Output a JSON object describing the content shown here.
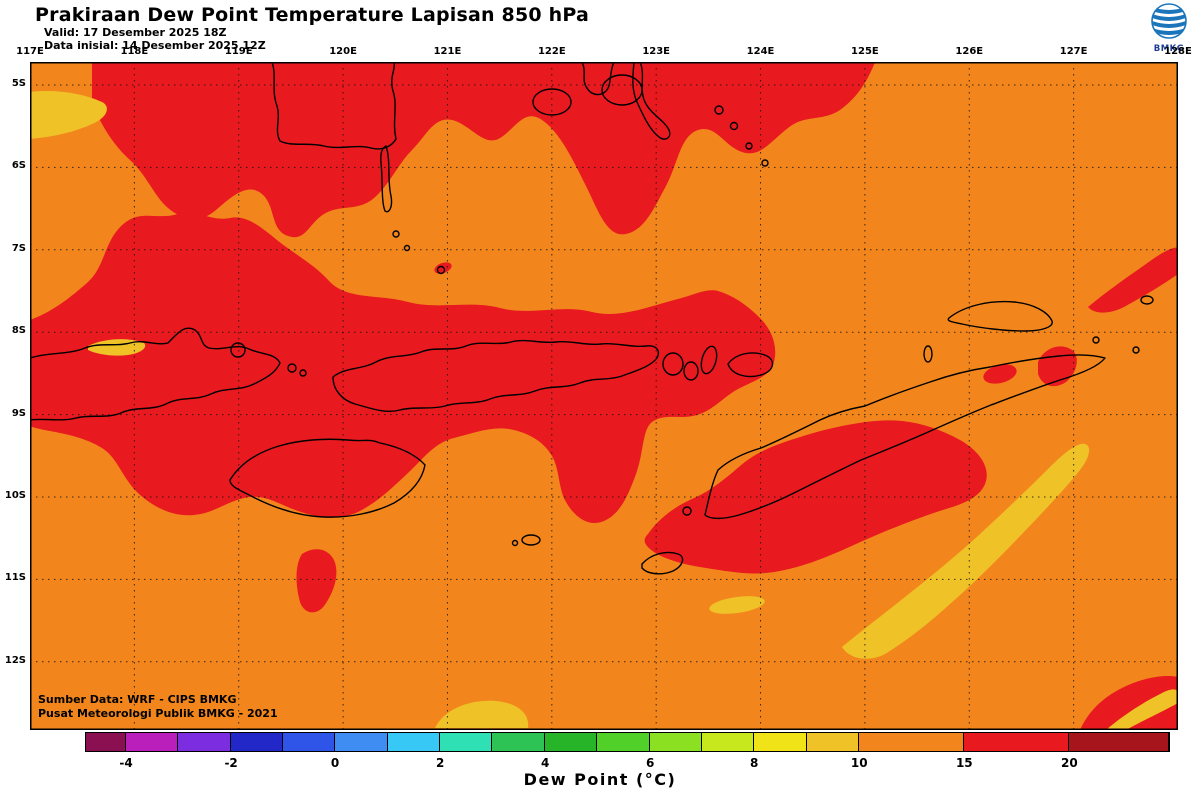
{
  "palette": {
    "orange": "#F2861D",
    "red": "#E8191F",
    "yellow": "#EFC227"
  },
  "header": {
    "title": "Prakiraan Dew Point Temperature Lapisan 850 hPa",
    "valid_line": "Valid: 17 Desember 2025 18Z",
    "init_line": "Data inisial: 14 Desember 2025 12Z",
    "logo_text": "BMKG"
  },
  "map": {
    "lon_ticks": [
      "117E",
      "118E",
      "119E",
      "120E",
      "121E",
      "122E",
      "123E",
      "124E",
      "125E",
      "126E",
      "127E",
      "128E"
    ],
    "lat_ticks": [
      "5S",
      "6S",
      "7S",
      "8S",
      "9S",
      "10S",
      "11S",
      "12S"
    ],
    "source_line1": "Sumber Data: WRF - CIPS BMKG",
    "source_line2": "Pusat Meteorologi Publik BMKG - 2021"
  },
  "colorbar": {
    "title": "Dew Point (°C)",
    "ticks": [
      {
        "label": "-4",
        "pos": 0.037
      },
      {
        "label": "-2",
        "pos": 0.134
      },
      {
        "label": "0",
        "pos": 0.23
      },
      {
        "label": "2",
        "pos": 0.327
      },
      {
        "label": "4",
        "pos": 0.424
      },
      {
        "label": "6",
        "pos": 0.521
      },
      {
        "label": "8",
        "pos": 0.617
      },
      {
        "label": "10",
        "pos": 0.714
      },
      {
        "label": "15",
        "pos": 0.811
      },
      {
        "label": "20",
        "pos": 0.908
      }
    ],
    "segments": [
      {
        "color": "#8B1052",
        "to": 0.037
      },
      {
        "color": "#BB1FBB",
        "to": 0.085
      },
      {
        "color": "#7D2DE0",
        "to": 0.134
      },
      {
        "color": "#2228C8",
        "to": 0.182
      },
      {
        "color": "#2F55E8",
        "to": 0.23
      },
      {
        "color": "#3F8CF2",
        "to": 0.279
      },
      {
        "color": "#38C8F5",
        "to": 0.327
      },
      {
        "color": "#2EE0B4",
        "to": 0.375
      },
      {
        "color": "#2EC455",
        "to": 0.424
      },
      {
        "color": "#28B428",
        "to": 0.472
      },
      {
        "color": "#50D028",
        "to": 0.521
      },
      {
        "color": "#8CE022",
        "to": 0.569
      },
      {
        "color": "#C8E81E",
        "to": 0.617
      },
      {
        "color": "#F0E418",
        "to": 0.666
      },
      {
        "color": "#EFC227",
        "to": 0.714
      },
      {
        "color": "#F2861D",
        "to": 0.811
      },
      {
        "color": "#E8191F",
        "to": 0.908
      },
      {
        "color": "#A5151B",
        "to": 1.0
      }
    ]
  },
  "chart_data": {
    "type": "heatmap",
    "title": "Prakiraan Dew Point Temperature Lapisan 850 hPa",
    "variable": "Dew Point (°C)",
    "level": "850 hPa",
    "valid_time": "17 Desember 2025 18Z",
    "initial_time": "14 Desember 2025 12Z",
    "x_axis_ticks": [
      "117E",
      "118E",
      "119E",
      "120E",
      "121E",
      "122E",
      "123E",
      "124E",
      "125E",
      "126E",
      "127E",
      "128E"
    ],
    "y_axis_ticks": [
      "5S",
      "6S",
      "7S",
      "8S",
      "9S",
      "10S",
      "11S",
      "12S"
    ],
    "colorbar_ticks": [
      -4,
      -2,
      0,
      2,
      4,
      6,
      8,
      10,
      15,
      20
    ],
    "regions": [
      {
        "range_c": "10 to 15",
        "color": "#F2861D",
        "coverage": "dominant background over the whole map"
      },
      {
        "range_c": "15 to 20",
        "color": "#E8191F",
        "coverage": "broad band along the top edge, large west and central mass along the Lesser Sunda island chain, blob around west Timor and Rote, streak below Sumba, patches at the right edge and bottom-right corner"
      },
      {
        "range_c": "8 to 10",
        "color": "#EFC227",
        "coverage": "wedge at upper-left edge, long diagonal streak southeast of Timor, small streaks near 123E 11S, bottom-center patch, bottom-right corner streak"
      }
    ]
  }
}
